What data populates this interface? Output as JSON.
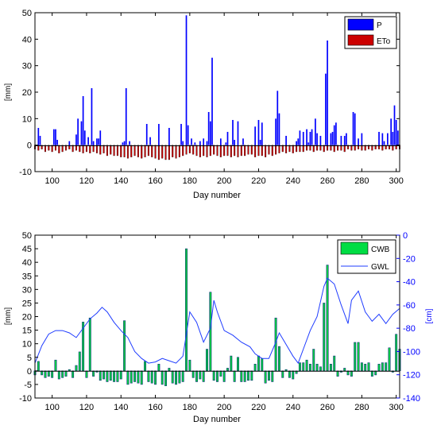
{
  "chart_data": [
    {
      "type": "bar",
      "xlabel": "Day number",
      "ylabel": "[mm]",
      "xlim": [
        90,
        302
      ],
      "ylim": [
        -10,
        50
      ],
      "xticks": [
        100,
        120,
        140,
        160,
        180,
        200,
        220,
        240,
        260,
        280,
        300
      ],
      "yticks": [
        -10,
        0,
        10,
        20,
        30,
        40,
        50
      ],
      "legend_position": "top-right",
      "series": [
        {
          "name": "P",
          "color": "#0000ff",
          "days": [
            92,
            93,
            101,
            102,
            103,
            110,
            114,
            115,
            117,
            118,
            119,
            121,
            123,
            124,
            126,
            127,
            128,
            141,
            142,
            143,
            145,
            155,
            157,
            162,
            168,
            175,
            176,
            178,
            179,
            181,
            183,
            186,
            188,
            190,
            191,
            192,
            193,
            198,
            201,
            202,
            205,
            206,
            208,
            211,
            218,
            220,
            221,
            222,
            230,
            231,
            232,
            236,
            242,
            243,
            244,
            246,
            248,
            249,
            250,
            251,
            253,
            254,
            256,
            259,
            260,
            262,
            263,
            264,
            265,
            268,
            270,
            271,
            275,
            276,
            278,
            280,
            290,
            292,
            293,
            295,
            297,
            298,
            299,
            300,
            301
          ],
          "values": [
            6.5,
            3.5,
            6,
            6,
            2,
            1.5,
            4,
            10,
            9,
            18.5,
            5.5,
            3,
            21.5,
            1.5,
            2.5,
            2.5,
            5.5,
            1,
            1.5,
            21.5,
            1.5,
            8,
            3,
            8,
            6.5,
            8,
            1.5,
            49,
            7.5,
            2.5,
            1,
            1.5,
            2.5,
            1.5,
            12.5,
            9,
            33,
            2.5,
            1,
            5,
            9.5,
            2,
            9,
            2.5,
            7,
            9.5,
            2,
            8.5,
            10,
            20.5,
            12,
            3.5,
            1.5,
            2.5,
            5.5,
            5,
            6,
            1,
            5,
            6,
            10,
            4.5,
            3.5,
            27,
            39.5,
            4.5,
            5,
            7.5,
            8.5,
            3.5,
            3.5,
            4.5,
            12.5,
            12,
            2.5,
            4.5,
            5,
            4.5,
            1.5,
            4.5,
            10,
            5,
            15,
            9.5,
            5.5
          ]
        },
        {
          "name": "ETo",
          "color": "#cc0000",
          "days": [
            90,
            92,
            94,
            96,
            98,
            100,
            102,
            104,
            106,
            108,
            110,
            112,
            114,
            116,
            118,
            120,
            122,
            124,
            126,
            128,
            130,
            132,
            134,
            136,
            138,
            140,
            142,
            144,
            146,
            148,
            150,
            152,
            154,
            156,
            158,
            160,
            162,
            164,
            166,
            168,
            170,
            172,
            174,
            176,
            178,
            180,
            182,
            184,
            186,
            188,
            190,
            192,
            194,
            196,
            198,
            200,
            202,
            204,
            206,
            208,
            210,
            212,
            214,
            216,
            218,
            220,
            222,
            224,
            226,
            228,
            230,
            232,
            234,
            236,
            238,
            240,
            242,
            244,
            246,
            248,
            250,
            252,
            254,
            256,
            258,
            260,
            262,
            264,
            266,
            268,
            270,
            272,
            274,
            276,
            278,
            280,
            282,
            284,
            286,
            288,
            290,
            292,
            294,
            296,
            298,
            300,
            302
          ],
          "values": [
            -1.5,
            -2,
            -1.5,
            -2.5,
            -2,
            -2.5,
            -2,
            -3,
            -2.5,
            -2,
            -1.5,
            -2.5,
            -2,
            -2.5,
            -3,
            -2.5,
            -3,
            -2.5,
            -3,
            -3.5,
            -3,
            -4,
            -3.5,
            -4,
            -4,
            -4.5,
            -4.5,
            -5,
            -4.5,
            -4,
            -4.5,
            -5,
            -4.5,
            -4,
            -4.5,
            -5,
            -5.5,
            -5,
            -5.5,
            -5.5,
            -4.5,
            -5,
            -4.5,
            -4,
            -3.5,
            -3,
            -3.5,
            -4,
            -4.5,
            -4,
            -4.5,
            -4,
            -3.5,
            -4,
            -4.5,
            -4,
            -4,
            -4.5,
            -4,
            -4.5,
            -4,
            -4,
            -3.5,
            -3.5,
            -4.5,
            -4,
            -4,
            -4.5,
            -3.5,
            -4,
            -3.5,
            -3,
            -2.5,
            -3,
            -2.5,
            -3,
            -2.5,
            -2.5,
            -2.5,
            -2,
            -2,
            -2.5,
            -2,
            -2,
            -2.5,
            -2,
            -2,
            -2.5,
            -2,
            -2,
            -2.5,
            -1.5,
            -2,
            -2,
            -1.5,
            -2,
            -2,
            -1.5,
            -2,
            -1.5,
            -1.5,
            -2,
            -1.5,
            -1.5,
            -2,
            -1.5,
            -1.5
          ]
        }
      ]
    },
    {
      "type": "bar",
      "xlabel": "Day number",
      "ylabel": "[mm]",
      "ylabel_right": "[cm]",
      "xlim": [
        90,
        302
      ],
      "ylim": [
        -10,
        50
      ],
      "ylim_right": [
        -140,
        0
      ],
      "xticks": [
        100,
        120,
        140,
        160,
        180,
        200,
        220,
        240,
        260,
        280,
        300
      ],
      "yticks": [
        -10,
        -5,
        0,
        5,
        10,
        15,
        20,
        25,
        30,
        35,
        40,
        45,
        50
      ],
      "yticks_right": [
        0,
        -20,
        -40,
        -60,
        -80,
        -100,
        -120,
        -140
      ],
      "legend_position": "top-right",
      "series": [
        {
          "name": "CWB",
          "color": "#00cc44",
          "days": [
            90,
            92,
            94,
            96,
            98,
            100,
            102,
            104,
            106,
            108,
            110,
            112,
            114,
            116,
            118,
            120,
            122,
            124,
            126,
            128,
            130,
            132,
            134,
            136,
            138,
            140,
            142,
            144,
            146,
            148,
            150,
            152,
            154,
            156,
            158,
            160,
            162,
            164,
            166,
            168,
            170,
            172,
            174,
            176,
            178,
            180,
            182,
            184,
            186,
            188,
            190,
            192,
            194,
            196,
            198,
            200,
            202,
            204,
            206,
            208,
            210,
            212,
            214,
            216,
            218,
            220,
            222,
            224,
            226,
            228,
            230,
            232,
            234,
            236,
            238,
            240,
            242,
            244,
            246,
            248,
            250,
            252,
            254,
            256,
            258,
            260,
            262,
            264,
            266,
            268,
            270,
            272,
            274,
            276,
            278,
            280,
            282,
            284,
            286,
            288,
            290,
            292,
            294,
            296,
            298,
            300,
            302
          ],
          "values": [
            -1.5,
            3.5,
            -1.5,
            -2.5,
            -2,
            -2.5,
            4,
            -3,
            -2.5,
            -2,
            0.5,
            -2.5,
            2,
            7,
            18,
            -2.5,
            19.5,
            -2,
            -0.5,
            -3.5,
            -3,
            -4,
            -3.5,
            -4,
            -4,
            -3,
            18.5,
            -5,
            -4.5,
            -4,
            -4.5,
            -5,
            3.5,
            -4,
            -4.5,
            -5,
            2.5,
            -5,
            -5.5,
            1,
            -4.5,
            -5,
            -4.5,
            -4,
            45,
            4,
            -2.5,
            -4,
            -3,
            -4,
            8,
            29,
            -3.5,
            -4,
            -2,
            -4,
            1,
            5.5,
            -4,
            5,
            -4,
            -4,
            -3.5,
            -3.5,
            2.5,
            5.5,
            4.5,
            -4.5,
            -3.5,
            -4,
            19.5,
            9,
            -2.5,
            0.5,
            -2.5,
            -3,
            -1,
            3,
            3,
            4,
            2.5,
            8,
            2.5,
            1.5,
            25,
            39,
            2.5,
            5.5,
            -2,
            -0.5,
            1,
            -1.5,
            -2,
            10.5,
            10.5,
            3,
            2.5,
            3,
            -2,
            -1.5,
            2.5,
            3,
            3,
            8.5,
            -0.5,
            13.5,
            8
          ]
        },
        {
          "name": "GWL",
          "type": "line",
          "axis": "right",
          "color": "#0000ff",
          "days": [
            90,
            94,
            98,
            102,
            106,
            110,
            114,
            118,
            122,
            126,
            129,
            132,
            136,
            140,
            144,
            148,
            152,
            156,
            160,
            164,
            168,
            172,
            176,
            178,
            180,
            184,
            188,
            192,
            194,
            196,
            200,
            205,
            210,
            215,
            218,
            222,
            226,
            230,
            232,
            236,
            240,
            243,
            246,
            250,
            254,
            258,
            260,
            264,
            268,
            272,
            274,
            278,
            282,
            286,
            290,
            294,
            298,
            302
          ],
          "values": [
            -110,
            -95,
            -85,
            -82,
            -82,
            -84,
            -88,
            -80,
            -72,
            -67,
            -62,
            -66,
            -75,
            -82,
            -88,
            -100,
            -106,
            -110,
            -109,
            -106,
            -108,
            -110,
            -104,
            -85,
            -66,
            -75,
            -92,
            -80,
            -56,
            -66,
            -82,
            -86,
            -92,
            -96,
            -102,
            -106,
            -106,
            -92,
            -84,
            -94,
            -104,
            -110,
            -98,
            -82,
            -70,
            -44,
            -37,
            -42,
            -60,
            -76,
            -56,
            -48,
            -66,
            -74,
            -68,
            -76,
            -68,
            -63
          ]
        }
      ]
    }
  ]
}
